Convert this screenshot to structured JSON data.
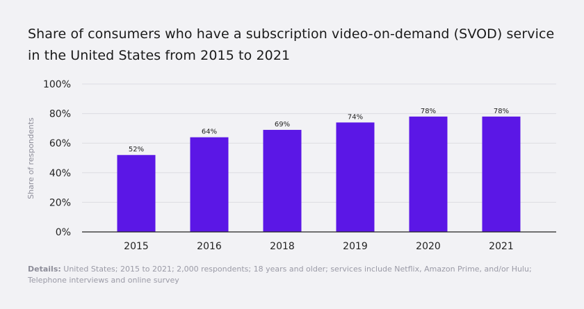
{
  "title": "Share of consumers who have a subscription video-on-demand (SVOD) service in the United States from 2015 to 2021",
  "footer": {
    "label": "Details:",
    "text": "United States; 2015 to 2021; 2,000 respondents; 18 years and older; services include Netflix, Amazon Prime, and/or Hulu; Telephone interviews and online survey"
  },
  "colors": {
    "bar": "#5b17e6",
    "grid": "#dcdce2",
    "axis": "#222222",
    "background": "#f2f2f5"
  },
  "chart_data": {
    "type": "bar",
    "title": "Share of consumers who have a subscription video-on-demand (SVOD) service in the United States from 2015 to 2021",
    "xlabel": "",
    "ylabel": "Share of respondents",
    "categories": [
      "2015",
      "2016",
      "2018",
      "2019",
      "2020",
      "2021"
    ],
    "values": [
      52,
      64,
      69,
      74,
      78,
      78
    ],
    "value_labels": [
      "52%",
      "64%",
      "69%",
      "74%",
      "78%",
      "78%"
    ],
    "ylim": [
      0,
      100
    ],
    "yticks": [
      0,
      20,
      40,
      60,
      80,
      100
    ],
    "ytick_labels": [
      "0%",
      "20%",
      "40%",
      "60%",
      "80%",
      "100%"
    ],
    "grid": true,
    "legend": "none"
  }
}
